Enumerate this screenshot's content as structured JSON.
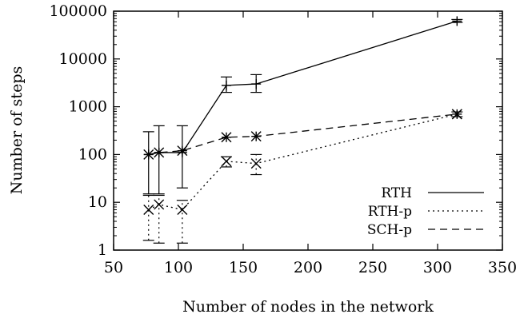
{
  "chart_data": {
    "type": "line",
    "xlabel": "Number of nodes in the network",
    "ylabel": "Number of steps",
    "xlim": [
      50,
      350
    ],
    "ylim": [
      1,
      100000
    ],
    "yscale": "log",
    "x_ticks": [
      "50",
      "100",
      "150",
      "200",
      "250",
      "300",
      "350"
    ],
    "y_ticks": [
      "1",
      "10",
      "100",
      "1000",
      "10000",
      "100000"
    ],
    "legend_position": "bottom-right",
    "series": [
      {
        "name": "RTH",
        "style": "solid",
        "points": [
          {
            "x": 77,
            "y": 100,
            "lo": 15,
            "hi": 300
          },
          {
            "x": 85,
            "y": 110,
            "lo": 15,
            "hi": 400
          },
          {
            "x": 103,
            "y": 110,
            "lo": 20,
            "hi": 400
          },
          {
            "x": 137,
            "y": 2800,
            "lo": 2000,
            "hi": 4200
          },
          {
            "x": 160,
            "y": 3000,
            "lo": 2000,
            "hi": 4700
          },
          {
            "x": 315,
            "y": 62000,
            "lo": 58000,
            "hi": 67000
          }
        ]
      },
      {
        "name": "RTH-p",
        "style": "dotted",
        "points": [
          {
            "x": 77,
            "y": 7,
            "lo": 1.6,
            "hi": 14
          },
          {
            "x": 85,
            "y": 9,
            "lo": 1.4,
            "hi": 14
          },
          {
            "x": 103,
            "y": 7,
            "lo": 1.4,
            "hi": 11
          },
          {
            "x": 137,
            "y": 72,
            "lo": 55,
            "hi": 90
          },
          {
            "x": 160,
            "y": 65,
            "lo": 38,
            "hi": 100
          },
          {
            "x": 315,
            "y": 700,
            "lo": 620,
            "hi": 780
          }
        ]
      },
      {
        "name": "SCH-p",
        "style": "dashed",
        "points": [
          {
            "x": 77,
            "y": 100
          },
          {
            "x": 85,
            "y": 110
          },
          {
            "x": 103,
            "y": 120
          },
          {
            "x": 137,
            "y": 230
          },
          {
            "x": 160,
            "y": 240
          },
          {
            "x": 315,
            "y": 700
          }
        ]
      }
    ]
  }
}
